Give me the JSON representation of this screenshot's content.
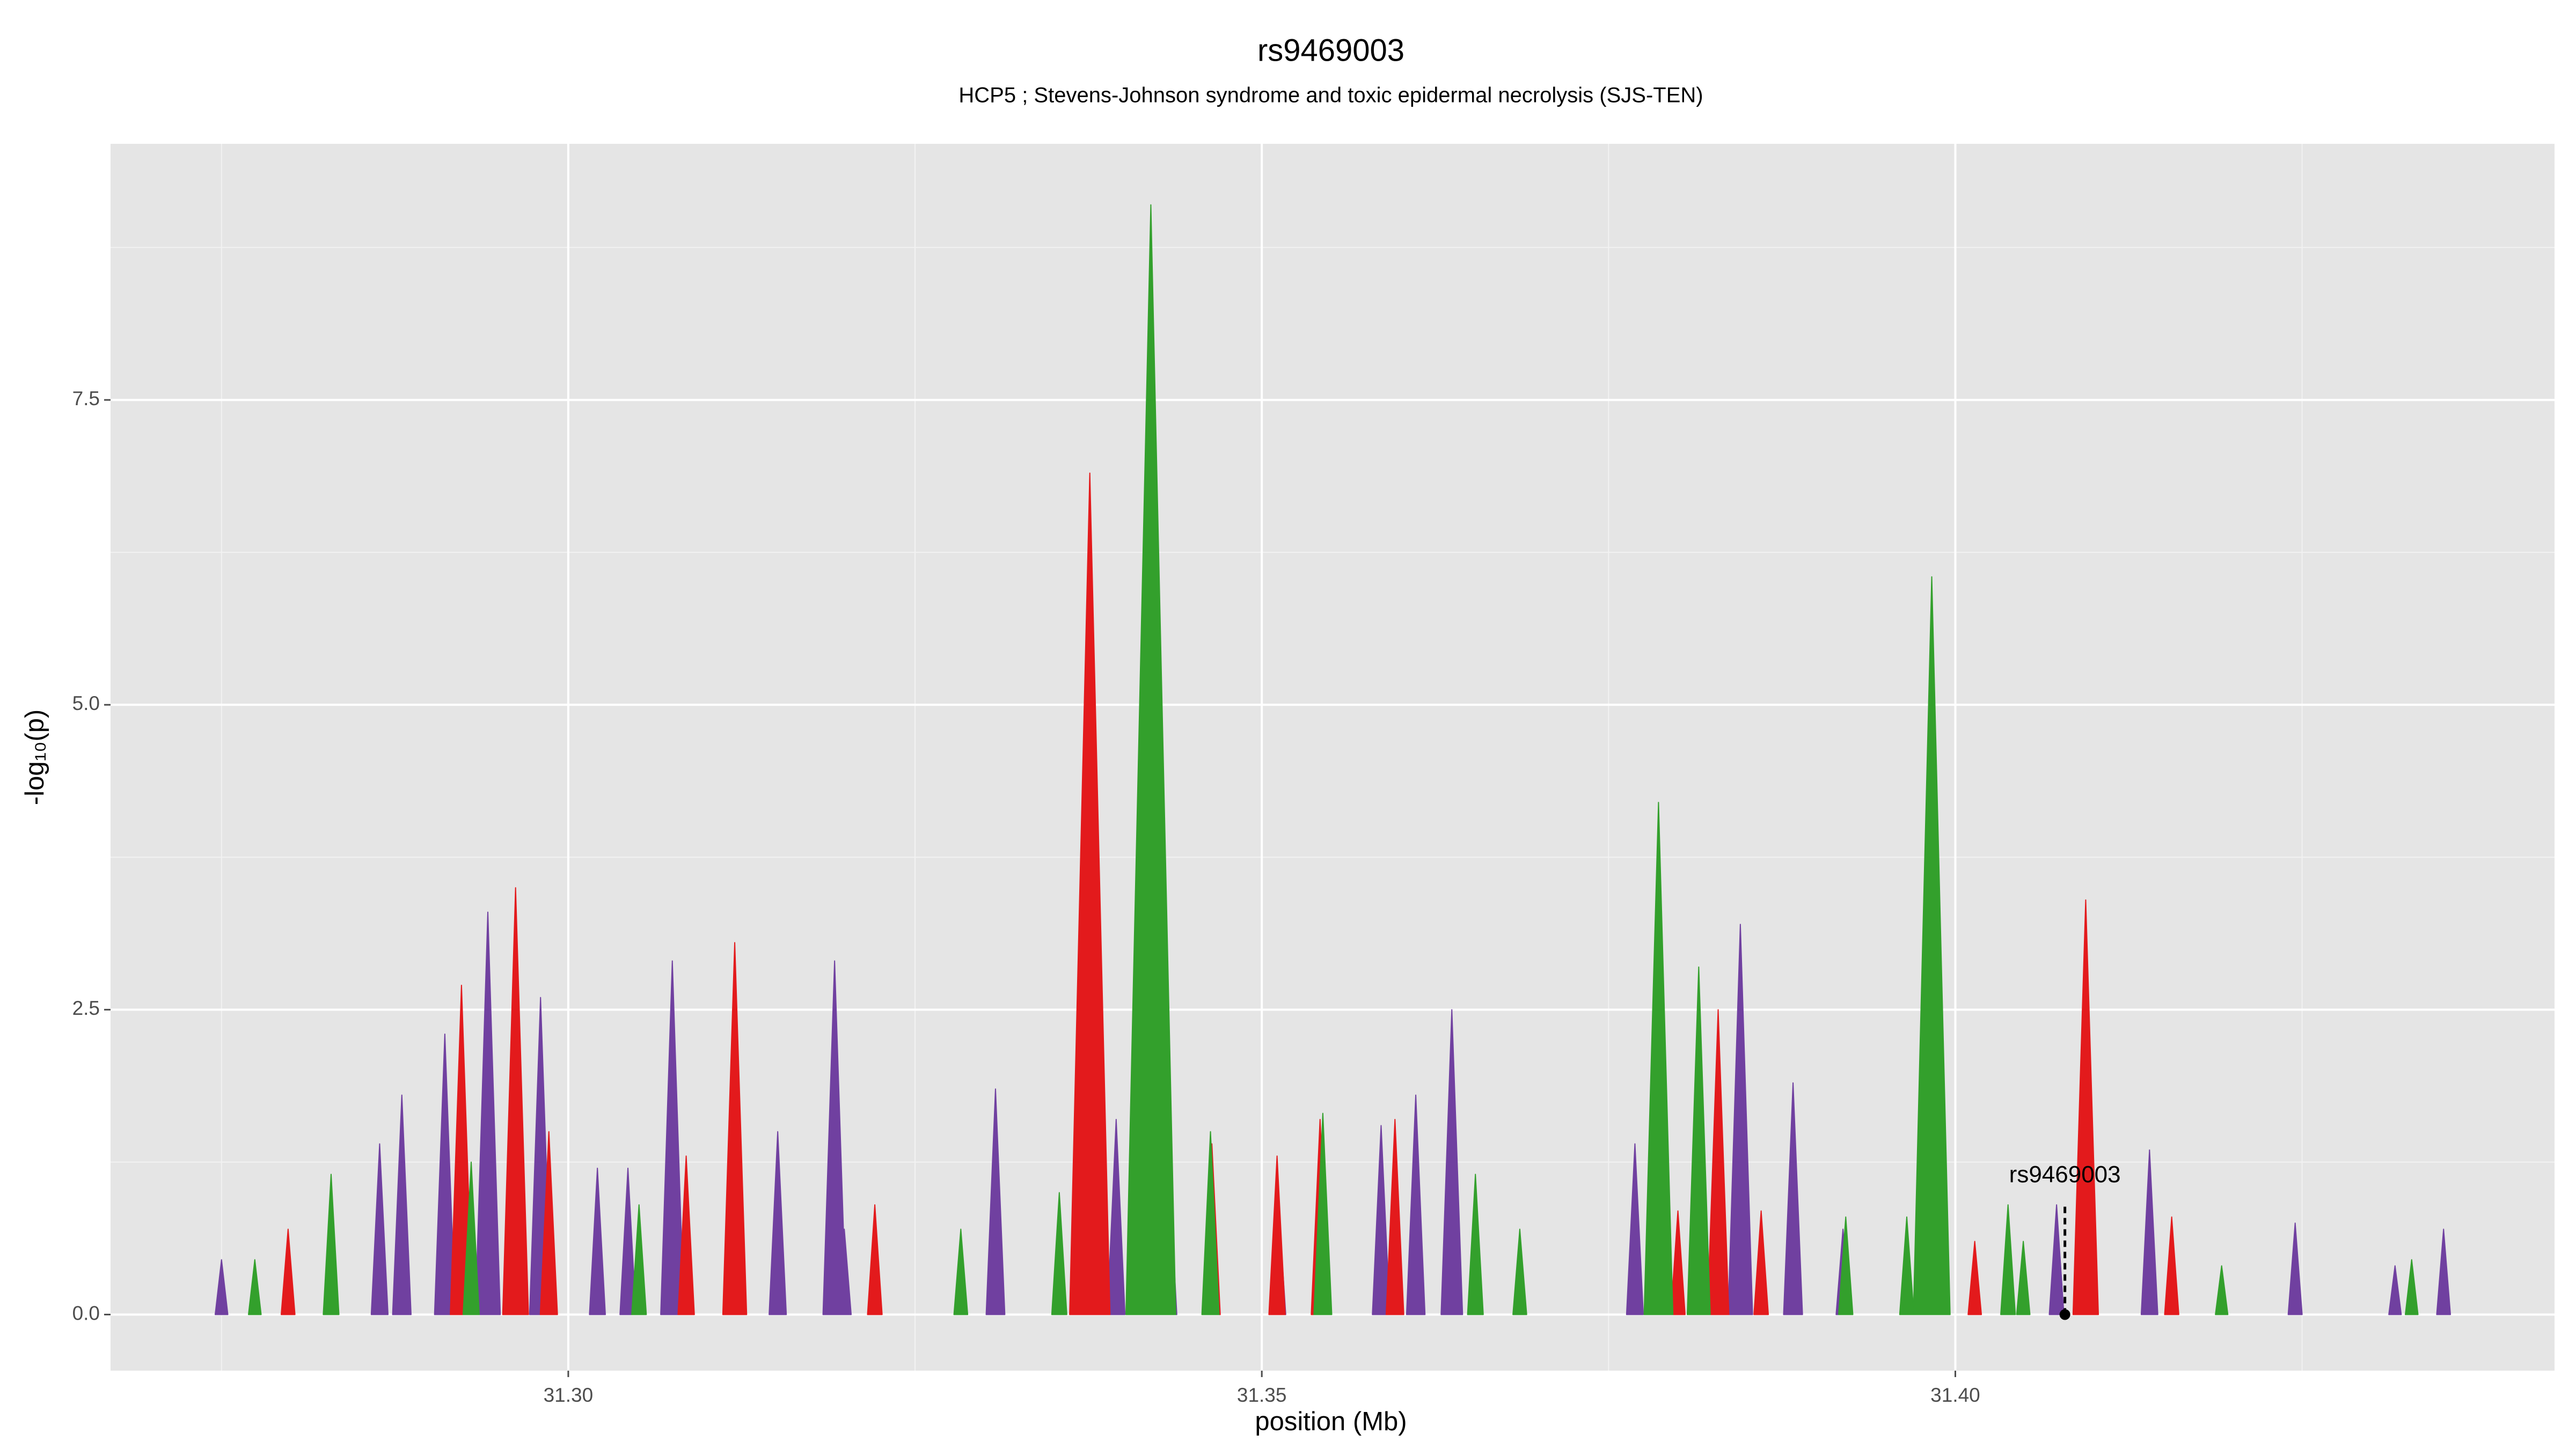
{
  "chart_data": {
    "type": "area",
    "title": "rs9469003",
    "subtitle": "HCP5 ; Stevens-Johnson syndrome and toxic epidermal necrolysis (SJS-TEN)",
    "xlabel": "position (Mb)",
    "ylabel": "-log₁₀(p)",
    "xlim": [
      31.267,
      31.4432
    ],
    "ylim": [
      -0.46,
      9.6
    ],
    "xticks": [
      {
        "value": 31.3,
        "label": "31.30"
      },
      {
        "value": 31.35,
        "label": "31.35"
      },
      {
        "value": 31.4,
        "label": "31.40"
      }
    ],
    "yticks": [
      {
        "value": 0,
        "label": "0.0"
      },
      {
        "value": 2.5,
        "label": "2.5"
      },
      {
        "value": 5,
        "label": "5.0"
      },
      {
        "value": 7.5,
        "label": "7.5"
      }
    ],
    "grid": true,
    "minor_grid": true,
    "background": "#e5e5e5",
    "series": [
      {
        "color": "#7040a0",
        "x": [
          31.275,
          31.2864,
          31.288,
          31.2911,
          31.2942,
          31.298,
          31.3021,
          31.3043,
          31.3075,
          31.3151,
          31.3192,
          31.3199,
          31.3308,
          31.3395,
          31.3433,
          31.3512,
          31.3586,
          31.3611,
          31.3637,
          31.3769,
          31.3845,
          31.3883,
          31.3919,
          31.4073,
          31.414,
          31.4245,
          31.4317,
          31.4352
        ],
        "values": [
          0.45,
          1.4,
          1.8,
          2.3,
          3.3,
          2.6,
          1.2,
          1.2,
          2.9,
          1.5,
          2.9,
          0.7,
          1.85,
          1.6,
          1.2,
          0.9,
          1.55,
          1.8,
          2.5,
          1.4,
          3.2,
          1.9,
          0.7,
          0.9,
          1.35,
          0.75,
          0.4,
          0.7
        ]
      },
      {
        "color": "#e31a1c",
        "x": [
          31.2798,
          31.2923,
          31.2962,
          31.2986,
          31.3085,
          31.312,
          31.3221,
          31.3376,
          31.3415,
          31.3464,
          31.3511,
          31.3542,
          31.3596,
          31.38,
          31.3829,
          31.386,
          31.4014,
          31.4094,
          31.4156
        ],
        "values": [
          0.7,
          2.7,
          3.5,
          1.5,
          1.3,
          3.05,
          0.9,
          6.9,
          3.0,
          1.4,
          1.3,
          1.6,
          1.6,
          0.85,
          2.5,
          0.85,
          0.6,
          3.4,
          0.8
        ]
      },
      {
        "color": "#33a02c",
        "x": [
          31.2774,
          31.2829,
          31.293,
          31.3051,
          31.3283,
          31.3354,
          31.342,
          31.3463,
          31.3544,
          31.3654,
          31.3686,
          31.3786,
          31.3815,
          31.3921,
          31.3965,
          31.3983,
          31.4038,
          31.4049,
          31.4192,
          31.4329
        ],
        "values": [
          0.45,
          1.15,
          1.25,
          0.9,
          0.7,
          1.0,
          9.1,
          1.5,
          1.65,
          1.15,
          0.7,
          4.2,
          2.85,
          0.8,
          0.8,
          6.05,
          0.9,
          0.6,
          0.4,
          0.45
        ]
      }
    ],
    "annotation": {
      "text": "rs9469003",
      "x": 31.4079,
      "y": 0
    }
  }
}
